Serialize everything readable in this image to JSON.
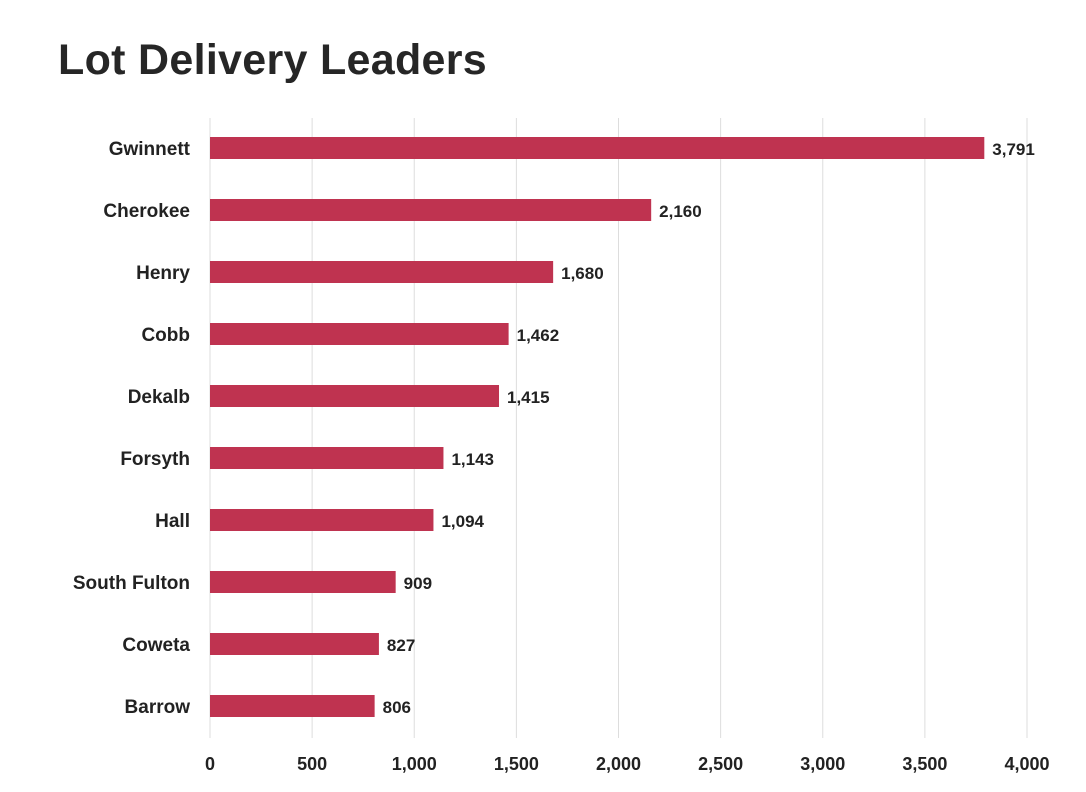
{
  "chart_data": {
    "type": "bar",
    "orientation": "horizontal",
    "title": "Lot Delivery Leaders",
    "xlabel": "",
    "ylabel": "",
    "categories": [
      "Gwinnett",
      "Cherokee",
      "Henry",
      "Cobb",
      "Dekalb",
      "Forsyth",
      "Hall",
      "South Fulton",
      "Coweta",
      "Barrow"
    ],
    "values": [
      3791,
      2160,
      1680,
      1462,
      1415,
      1143,
      1094,
      909,
      827,
      806
    ],
    "value_labels": [
      "3,791",
      "2,160",
      "1,680",
      "1,462",
      "1,415",
      "1,143",
      "1,094",
      "909",
      "827",
      "806"
    ],
    "xlim": [
      0,
      4000
    ],
    "xticks": [
      0,
      500,
      1000,
      1500,
      2000,
      2500,
      3000,
      3500,
      4000
    ],
    "xtick_labels": [
      "0",
      "500",
      "1,000",
      "1,500",
      "2,000",
      "2,500",
      "3,000",
      "3,500",
      "4,000"
    ],
    "grid": true,
    "bar_color": "#bf3350",
    "grid_color": "#dddddd",
    "text_color": "#222222",
    "title_color": "#262626"
  }
}
